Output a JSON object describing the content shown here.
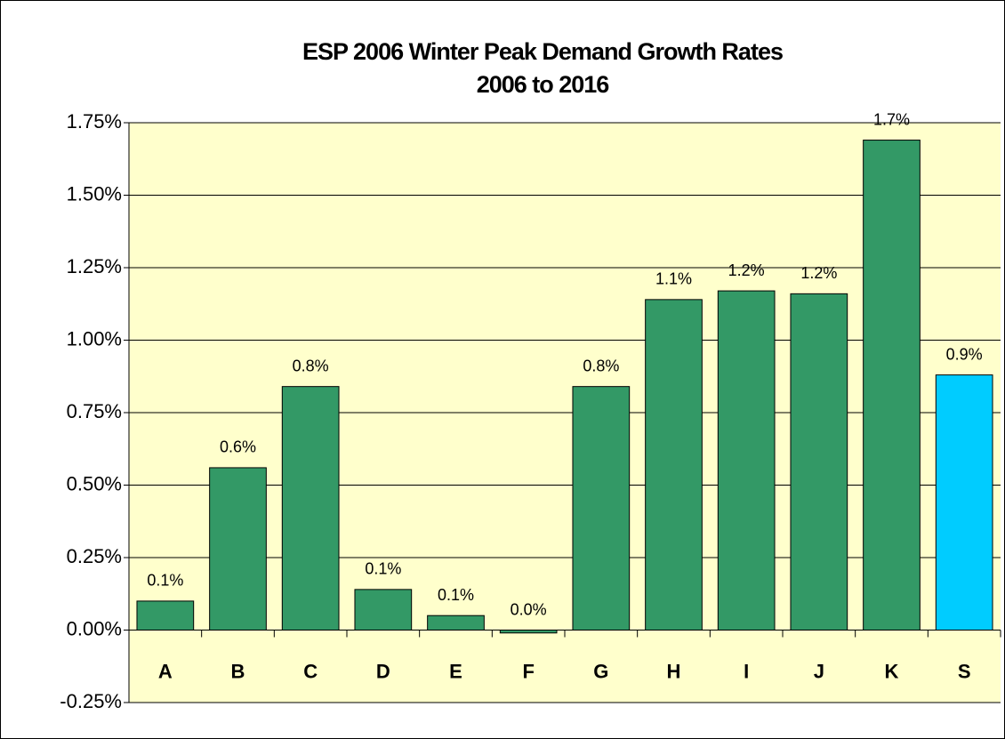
{
  "chart_data": {
    "type": "bar",
    "title": "ESP 2006 Winter Peak Demand Growth Rates",
    "subtitle": "2006 to 2016",
    "categories": [
      "A",
      "B",
      "C",
      "D",
      "E",
      "F",
      "G",
      "H",
      "I",
      "J",
      "K",
      "S"
    ],
    "values": [
      0.1,
      0.56,
      0.84,
      0.14,
      0.05,
      -0.01,
      0.84,
      1.14,
      1.17,
      1.16,
      1.69,
      0.88
    ],
    "value_labels": [
      "0.1%",
      "0.6%",
      "0.8%",
      "0.1%",
      "0.1%",
      "0.0%",
      "0.8%",
      "1.1%",
      "1.2%",
      "1.2%",
      "1.7%",
      "0.9%"
    ],
    "colors": [
      "#339966",
      "#339966",
      "#339966",
      "#339966",
      "#339966",
      "#339966",
      "#339966",
      "#339966",
      "#339966",
      "#339966",
      "#339966",
      "#00ccff"
    ],
    "ylim": [
      -0.25,
      1.75
    ],
    "yticks": [
      {
        "value": -0.25,
        "label": "-0.25%"
      },
      {
        "value": 0,
        "label": "0.00%"
      },
      {
        "value": 0.25,
        "label": "0.25%"
      },
      {
        "value": 0.5,
        "label": "0.50%"
      },
      {
        "value": 0.75,
        "label": "0.75%"
      },
      {
        "value": 1,
        "label": "1.00%"
      },
      {
        "value": 1.25,
        "label": "1.25%"
      },
      {
        "value": 1.5,
        "label": "1.50%"
      },
      {
        "value": 1.75,
        "label": "1.75%"
      }
    ],
    "grid": true,
    "plot_background": "#ffffcc"
  }
}
